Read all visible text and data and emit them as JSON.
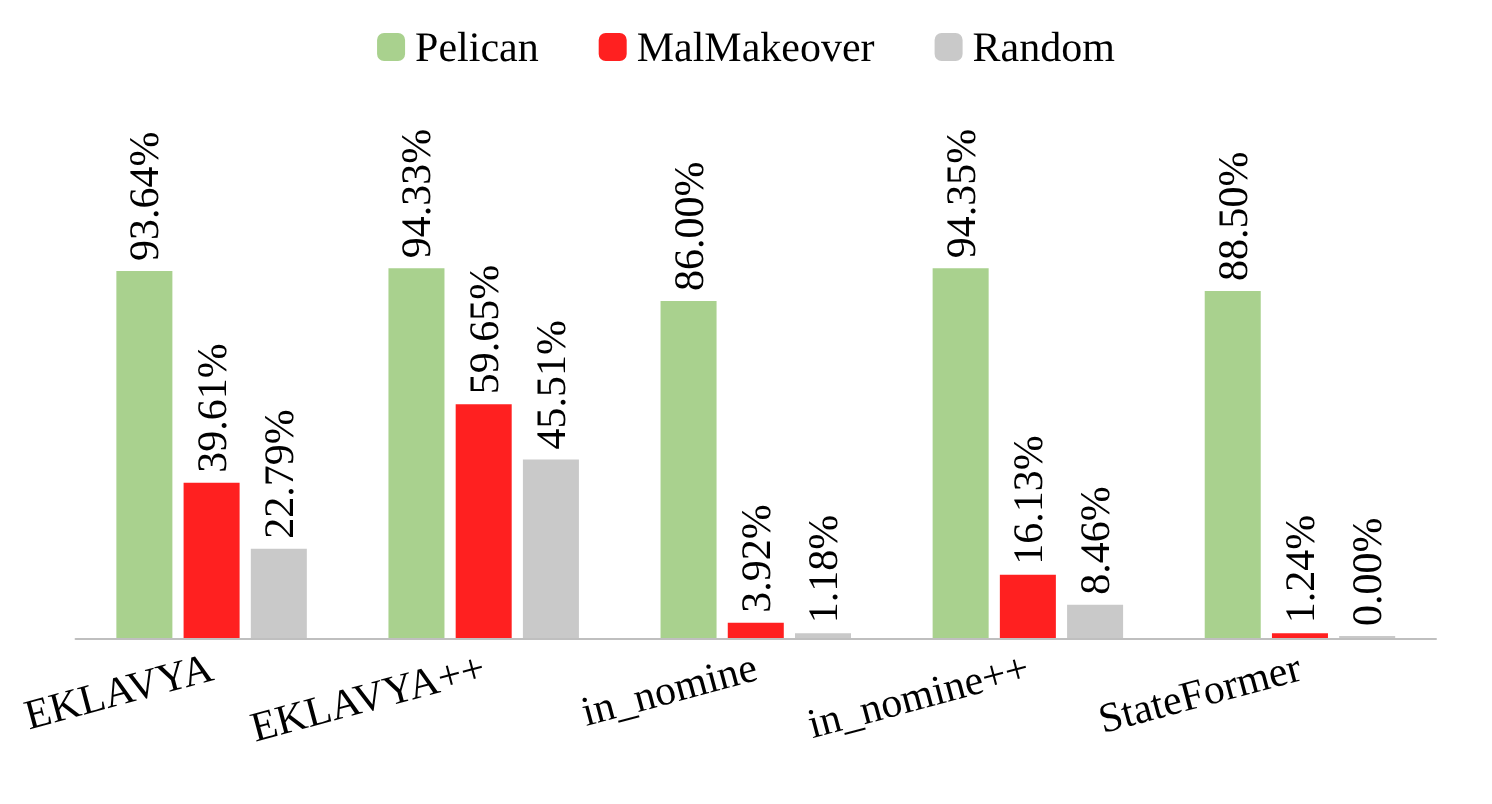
{
  "chart_data": {
    "type": "bar",
    "categories": [
      "EKLAVYA",
      "EKLAVYA++",
      "in_nomine",
      "in_nomine++",
      "StateFormer"
    ],
    "legend": "top",
    "grid": false,
    "series": [
      {
        "name": "Pelican",
        "color": "#a9d18e",
        "values": [
          93.64,
          94.33,
          86.0,
          94.35,
          88.5
        ],
        "value_labels": [
          "93.64%",
          "94.33%",
          "86.00%",
          "94.35%",
          "88.50%"
        ]
      },
      {
        "name": "MalMakeover",
        "color": "#ff2020",
        "values": [
          39.61,
          59.65,
          3.92,
          16.13,
          1.24
        ],
        "value_labels": [
          "39.61%",
          "59.65%",
          "3.92%",
          "16.13%",
          "1.24%"
        ]
      },
      {
        "name": "Random",
        "color": "#c9c9c9",
        "values": [
          22.79,
          45.51,
          1.18,
          8.46,
          0.0
        ],
        "value_labels": [
          "22.79%",
          "45.51%",
          "1.18%",
          "8.46%",
          "0.00%"
        ]
      }
    ]
  }
}
